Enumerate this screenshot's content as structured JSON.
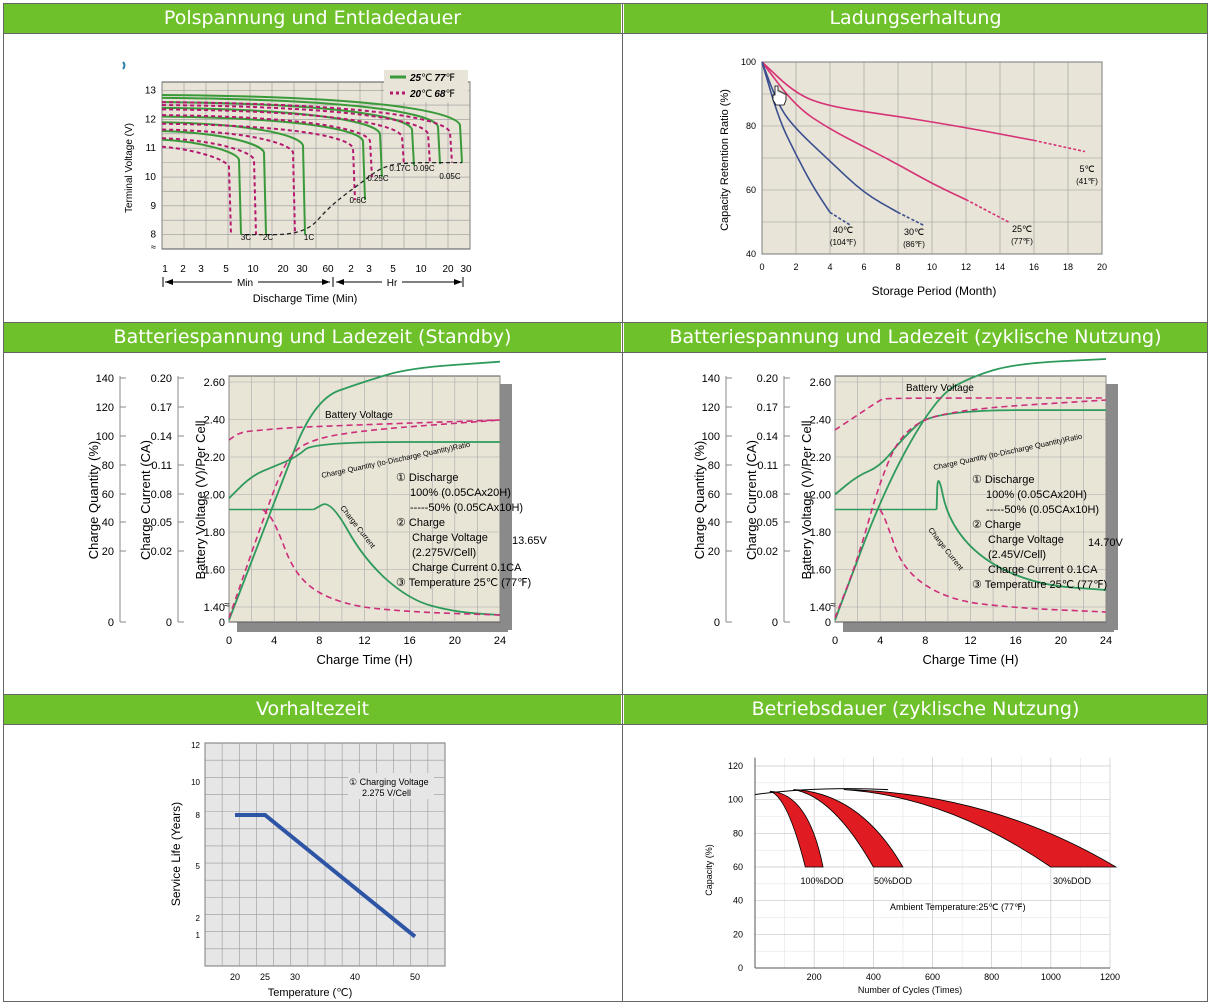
{
  "panels": {
    "discharge": {
      "title": "Polspannung und Entladedauer",
      "chart_data": {
        "type": "line",
        "ylabel": "Terminal Voltage (V)",
        "xlabel": "Discharge Time (Min)",
        "y_ticks": [
          "13",
          "12",
          "11",
          "10",
          "9",
          "8"
        ],
        "x_ticks": [
          "1",
          "2",
          "3",
          "5",
          "10",
          "20",
          "30",
          "60",
          "2",
          "3",
          "5",
          "10",
          "20",
          "30"
        ],
        "x_units": [
          "Min",
          "Hr"
        ],
        "legend": [
          {
            "label_num": "25",
            "label_unit": "℃",
            "label_num2": "77",
            "label_unit2": "℉",
            "color": "#3a9a3a",
            "dash": false
          },
          {
            "label_num": "20",
            "label_unit": "℃",
            "label_num2": "68",
            "label_unit2": "℉",
            "color": "#b4196e",
            "dash": true
          }
        ],
        "rates": [
          "3C",
          "2C",
          "1C",
          "0.6C",
          "0.25C",
          "0.17C",
          "0.09C",
          "0.05C"
        ],
        "series_end_voltage": [
          8.0,
          8.0,
          8.0,
          9.2,
          10.0,
          10.4,
          10.45,
          10.5
        ],
        "grid": true
      }
    },
    "retention": {
      "title": "Ladungserhaltung",
      "chart_data": {
        "type": "line",
        "ylabel": "Capacity Retention Ratio (%)",
        "xlabel": "Storage Period (Month)",
        "ylim": [
          40,
          100
        ],
        "xlim": [
          0,
          20
        ],
        "y_ticks": [
          "100",
          "80",
          "60",
          "40"
        ],
        "x_ticks": [
          "0",
          "2",
          "4",
          "6",
          "8",
          "10",
          "12",
          "14",
          "16",
          "18",
          "20"
        ],
        "series": [
          {
            "name": "5℃",
            "name2": "(41℉)",
            "x": [
              0,
              2,
              4,
              8,
              12,
              16,
              19
            ],
            "values": [
              100,
              90,
              86,
              83,
              79.5,
              75.5,
              72
            ]
          },
          {
            "name": "25℃",
            "name2": "(77℉)",
            "x": [
              0,
              2,
              4,
              6,
              8,
              10,
              12,
              14.5
            ],
            "values": [
              100,
              86,
              79,
              73.5,
              68,
              62,
              57,
              50
            ]
          },
          {
            "name": "30℃",
            "name2": "(86℉)",
            "x": [
              0,
              1,
              2,
              4,
              6,
              8,
              9.5
            ],
            "values": [
              100,
              86,
              79,
              69,
              59,
              53,
              49
            ]
          },
          {
            "name": "40℃",
            "name2": "(104℉)",
            "x": [
              0,
              1,
              2,
              3,
              4,
              5.2
            ],
            "values": [
              100,
              82,
              71,
              61,
              53,
              49
            ]
          }
        ],
        "grid": true
      }
    },
    "standby": {
      "title": "Batteriespannung und Ladezeit (Standby)",
      "chart_data": {
        "type": "line",
        "xlabel": "Charge Time (H)",
        "ylabels": [
          "Charge Quantity (%)",
          "Charge Current (CA)",
          "Battery Voltage (V)/Per Cell"
        ],
        "y1_ticks": [
          "140",
          "120",
          "100",
          "80",
          "60",
          "40",
          "20",
          "0"
        ],
        "y2_ticks": [
          "0.20",
          "0.17",
          "0.14",
          "0.11",
          "0.08",
          "0.05",
          "0.02",
          "0"
        ],
        "y3_ticks": [
          "2.60",
          "2.40",
          "2.20",
          "2.00",
          "1.80",
          "1.60",
          "1.40",
          "0"
        ],
        "x_ticks": [
          "0",
          "4",
          "8",
          "12",
          "16",
          "20",
          "24"
        ],
        "curve_labels": [
          "Battery Voltage",
          "Charge Quantity (to-Discharge Quantity)Ratio",
          "Charge Current"
        ],
        "notes": [
          "① Discharge",
          "100% (0.05CAx20H)",
          "-----50% (0.05CAx10H)",
          "② Charge",
          "Charge Voltage",
          "13.65V",
          "(2.275V/Cell)",
          "Charge Current 0.1CA",
          "③ Temperature 25℃ (77℉)"
        ],
        "grid": true
      }
    },
    "cyclic": {
      "title": "Batteriespannung und Ladezeit (zyklische Nutzung)",
      "chart_data": {
        "type": "line",
        "xlabel": "Charge Time (H)",
        "ylabels": [
          "Charge Quantity (%)",
          "Charge Current (CA)",
          "Battery Voltage (V)/Per Cell"
        ],
        "y1_ticks": [
          "140",
          "120",
          "100",
          "80",
          "60",
          "40",
          "20",
          "0"
        ],
        "y2_ticks": [
          "0.20",
          "0.17",
          "0.14",
          "0.11",
          "0.08",
          "0.05",
          "0.02",
          "0"
        ],
        "y3_ticks": [
          "2.60",
          "2.40",
          "2.20",
          "2.00",
          "1.80",
          "1.60",
          "1.40",
          "0"
        ],
        "x_ticks": [
          "0",
          "4",
          "8",
          "12",
          "16",
          "20",
          "24"
        ],
        "curve_labels": [
          "Battery Voltage",
          "Charge Quantity (to-Discharge Quantity)Ratio",
          "Charge Current"
        ],
        "notes": [
          "① Discharge",
          "100% (0.05CAx20H)",
          "-----50% (0.05CAx10H)",
          "② Charge",
          "Charge Voltage",
          "14.70V",
          "(2.45V/Cell)",
          "Charge Current 0.1CA",
          "③ Temperature 25℃ (77℉)"
        ],
        "grid": true
      }
    },
    "life": {
      "title": "Vorhaltezeit",
      "chart_data": {
        "type": "line",
        "ylabel": "Service Life (Years)",
        "xlabel": "Temperature (℃)",
        "y_ticks": [
          "12",
          "10",
          "8",
          "5",
          "2",
          "1"
        ],
        "x_ticks": [
          "20",
          "25",
          "30",
          "40",
          "50"
        ],
        "note": [
          "① Charging Voltage",
          "2.275 V/Cell"
        ],
        "series": [
          {
            "x": [
              20,
              25,
              50
            ],
            "values": [
              8,
              8,
              1.5
            ]
          }
        ],
        "grid": true
      }
    },
    "cycles": {
      "title": "Betriebsdauer (zyklische Nutzung)",
      "chart_data": {
        "type": "area",
        "ylabel": "Capacity (%)",
        "xlabel": "Number of Cycles (Times)",
        "ylim": [
          0,
          120
        ],
        "xlim": [
          0,
          1200
        ],
        "y_ticks": [
          "120",
          "100",
          "80",
          "60",
          "40",
          "20",
          "0"
        ],
        "x_ticks": [
          "200",
          "400",
          "600",
          "800",
          "1000",
          "1200"
        ],
        "bands": [
          {
            "name": "100%DOD",
            "x": [
              0,
              50,
              100,
              150,
              200
            ],
            "values": [
              103,
              105,
              100,
              80,
              60
            ]
          },
          {
            "name": "50%DOD",
            "x": [
              0,
              100,
              200,
              300,
              400,
              500
            ],
            "values": [
              103,
              106,
              104,
              95,
              80,
              60
            ]
          },
          {
            "name": "30%DOD",
            "x": [
              0,
              200,
              400,
              600,
              800,
              1000,
              1200
            ],
            "values": [
              103,
              107,
              106,
              100,
              90,
              78,
              60
            ]
          }
        ],
        "annotation": "Ambient Temperature:25℃ (77℉)",
        "grid": true
      }
    }
  }
}
